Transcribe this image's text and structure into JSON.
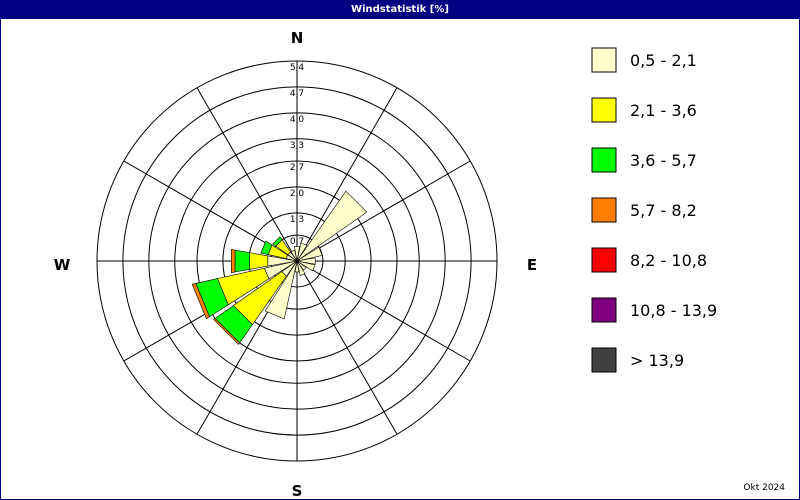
{
  "window": {
    "title": "Windstatistik [%]",
    "footer": "Okt 2024"
  },
  "colors": {
    "bins": [
      "#ffffcc",
      "#ffff00",
      "#00ff00",
      "#ff8000",
      "#ff0000",
      "#800080",
      "#404040"
    ],
    "grid": "#000000",
    "title_bar": "#000080"
  },
  "chart_data": {
    "type": "polar-stacked-bar",
    "title": "Windstatistik [%]",
    "directions": [
      "N",
      "NNE",
      "NE",
      "ENE",
      "E",
      "ESE",
      "SE",
      "SSE",
      "S",
      "SSW",
      "SW",
      "WSW",
      "W",
      "WNW",
      "NW",
      "NNW"
    ],
    "direction_angles_deg": [
      0,
      22.5,
      45,
      67.5,
      90,
      112.5,
      135,
      157.5,
      180,
      202.5,
      225,
      247.5,
      270,
      292.5,
      315,
      337.5
    ],
    "compass_labels": [
      "N",
      "E",
      "S",
      "W"
    ],
    "radial_max": 5.4,
    "radial_ticks": [
      0.7,
      1.3,
      2.0,
      2.7,
      3.3,
      4.0,
      4.7,
      5.4
    ],
    "radial_tick_labels": [
      "0,7",
      "1,3",
      "2,0",
      "2,7",
      "3,3",
      "4,0",
      "4,7",
      "5,4"
    ],
    "series": [
      {
        "name": "0,5 - 2,1",
        "values": [
          0.4,
          0.5,
          2.3,
          0.7,
          0.5,
          0.5,
          0.3,
          0.4,
          0.3,
          1.6,
          0.5,
          0.9,
          0.8,
          0.3,
          0.3,
          0.3
        ]
      },
      {
        "name": "2,1 - 3,6",
        "values": [
          0.0,
          0.0,
          0.0,
          0.0,
          0.0,
          0.0,
          0.0,
          0.0,
          0.0,
          0.0,
          1.6,
          1.3,
          0.5,
          0.5,
          0.4,
          0.0
        ]
      },
      {
        "name": "3,6 - 5,7",
        "values": [
          0.0,
          0.0,
          0.0,
          0.0,
          0.0,
          0.0,
          0.0,
          0.0,
          0.0,
          0.0,
          0.6,
          0.6,
          0.4,
          0.2,
          0.1,
          0.0
        ]
      },
      {
        "name": "5,7 - 8,2",
        "values": [
          0.0,
          0.0,
          0.0,
          0.0,
          0.0,
          0.0,
          0.0,
          0.0,
          0.0,
          0.0,
          0.05,
          0.1,
          0.1,
          0.0,
          0.0,
          0.0
        ]
      },
      {
        "name": "8,2 - 10,8",
        "values": [
          0,
          0,
          0,
          0,
          0,
          0,
          0,
          0,
          0,
          0,
          0,
          0,
          0,
          0,
          0,
          0
        ]
      },
      {
        "name": "10,8 - 13,9",
        "values": [
          0,
          0,
          0,
          0,
          0,
          0,
          0,
          0,
          0,
          0,
          0,
          0,
          0,
          0,
          0,
          0
        ]
      },
      {
        "name": "> 13,9",
        "values": [
          0,
          0,
          0,
          0,
          0,
          0,
          0,
          0,
          0,
          0,
          0,
          0,
          0,
          0,
          0,
          0
        ]
      }
    ],
    "legend_entries": [
      "0,5 - 2,1",
      "2,1 - 3,6",
      "3,6 - 5,7",
      "5,7 - 8,2",
      "8,2 - 10,8",
      "10,8 - 13,9",
      "> 13,9"
    ],
    "grid": true,
    "legend_position": "right"
  }
}
